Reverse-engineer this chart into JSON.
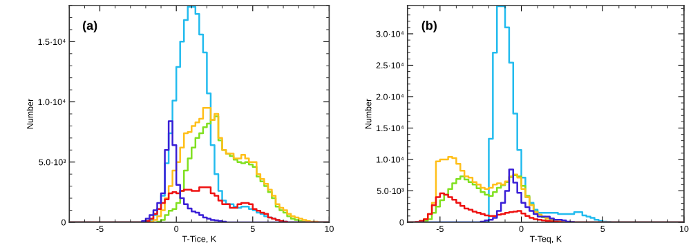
{
  "chart_data": [
    {
      "type": "histogram",
      "xlabel": "T-Tice, K",
      "ylabel": "Number",
      "annotations": [
        "(a)"
      ],
      "bins": [
        -7,
        -6.75,
        -6.5,
        -6.25,
        -6,
        -5.75,
        -5.5,
        -5.25,
        -5,
        -4.75,
        -4.5,
        -4.25,
        -4,
        -3.75,
        -3.5,
        -3.25,
        -3,
        -2.75,
        -2.5,
        -2.25,
        -2,
        -1.75,
        -1.5,
        -1.25,
        -1,
        -0.75,
        -0.5,
        -0.25,
        0,
        0.25,
        0.5,
        0.75,
        1,
        1.25,
        1.5,
        1.75,
        2,
        2.25,
        2.5,
        2.75,
        3,
        3.25,
        3.5,
        3.75,
        4,
        4.25,
        4.5,
        4.75,
        5,
        5.25,
        5.5,
        5.75,
        6,
        6.25,
        6.5,
        6.75,
        7,
        7.25,
        7.5,
        7.75,
        8,
        8.25,
        8.5,
        8.75,
        9,
        9.25,
        9.5,
        9.75,
        10
      ],
      "series": [
        {
          "color": "#22bbee",
          "values": [
            0,
            0,
            0,
            0,
            0,
            0,
            0,
            0,
            0,
            0,
            0,
            0,
            0,
            0,
            0,
            0,
            0,
            0,
            0,
            0,
            50,
            200,
            600,
            1100,
            2200,
            4900,
            7400,
            10100,
            12900,
            15000,
            16800,
            17900,
            17900,
            17300,
            15600,
            14100,
            10700,
            6400,
            4000,
            2600,
            1800,
            1500,
            1500,
            1300,
            1200,
            1300,
            1300,
            1100,
            1000,
            800,
            700,
            500,
            400,
            300,
            200,
            100,
            50,
            0,
            0,
            0,
            0,
            0,
            0,
            0,
            0,
            0,
            0,
            0
          ]
        },
        {
          "color": "#80e020",
          "values": [
            0,
            0,
            0,
            0,
            0,
            0,
            0,
            0,
            0,
            0,
            0,
            0,
            0,
            0,
            0,
            0,
            0,
            0,
            0,
            0,
            0,
            0,
            0,
            50,
            200,
            600,
            950,
            1100,
            1600,
            2600,
            4300,
            5300,
            6200,
            7000,
            7400,
            7900,
            8200,
            8500,
            8800,
            6800,
            6000,
            5700,
            5500,
            5200,
            5000,
            4900,
            5000,
            4800,
            4600,
            3800,
            3400,
            3000,
            2500,
            2000,
            1300,
            1000,
            800,
            500,
            300,
            200,
            100,
            50,
            0,
            0,
            0,
            0,
            0,
            0
          ]
        },
        {
          "color": "#ffbf1a",
          "values": [
            0,
            0,
            0,
            0,
            0,
            0,
            0,
            0,
            0,
            0,
            0,
            0,
            0,
            0,
            0,
            0,
            0,
            0,
            0,
            0,
            0,
            50,
            200,
            500,
            1000,
            2000,
            3000,
            4300,
            5000,
            6200,
            7400,
            7500,
            8000,
            8300,
            8600,
            9500,
            9500,
            8500,
            9000,
            7000,
            6000,
            5700,
            5700,
            5300,
            5300,
            5600,
            5300,
            5000,
            5000,
            4000,
            3600,
            3200,
            2700,
            2200,
            1500,
            1200,
            1000,
            700,
            500,
            400,
            300,
            200,
            100,
            50,
            50,
            0,
            0,
            0
          ]
        },
        {
          "color": "#ee1111",
          "values": [
            0,
            0,
            0,
            0,
            0,
            0,
            0,
            0,
            0,
            0,
            0,
            0,
            0,
            0,
            0,
            0,
            0,
            0,
            0,
            50,
            100,
            300,
            700,
            1100,
            1600,
            1900,
            2400,
            2500,
            2400,
            2600,
            2700,
            2700,
            2600,
            2600,
            2900,
            2900,
            2900,
            2400,
            2200,
            1800,
            1500,
            1500,
            1200,
            1200,
            1500,
            1600,
            1600,
            1500,
            1100,
            950,
            800,
            700,
            400,
            300,
            200,
            100,
            50,
            0,
            0,
            0,
            0,
            0,
            0,
            0,
            0,
            0,
            0,
            0
          ]
        },
        {
          "color": "#3a1fd6",
          "values": [
            0,
            0,
            0,
            0,
            0,
            0,
            0,
            0,
            0,
            0,
            0,
            0,
            0,
            0,
            0,
            0,
            0,
            0,
            0,
            100,
            300,
            600,
            1000,
            1600,
            2400,
            6000,
            8400,
            6400,
            3100,
            2000,
            1500,
            1150,
            900,
            800,
            600,
            400,
            300,
            200,
            150,
            100,
            50,
            0,
            0,
            0,
            0,
            0,
            0,
            0,
            0,
            0,
            0,
            0,
            0,
            0,
            0,
            0,
            0,
            0,
            0,
            0,
            0,
            0,
            0,
            0,
            0,
            0,
            0,
            0
          ]
        }
      ],
      "xlim": [
        -7,
        10
      ],
      "xticks": [
        -5,
        0,
        5,
        10
      ],
      "ylim": [
        0,
        18000
      ],
      "yticks": [
        0,
        {
          "value": 5000,
          "label": "5.0·10³"
        },
        {
          "value": 10000,
          "label": "1.0·10⁴"
        },
        {
          "value": 15000,
          "label": "1.5·10⁴"
        }
      ]
    },
    {
      "type": "histogram",
      "xlabel": "T-Teq, K",
      "ylabel": "Number",
      "annotations": [
        "(b)"
      ],
      "bins": [
        -7,
        -6.75,
        -6.5,
        -6.25,
        -6,
        -5.75,
        -5.5,
        -5.25,
        -5,
        -4.75,
        -4.5,
        -4.25,
        -4,
        -3.75,
        -3.5,
        -3.25,
        -3,
        -2.75,
        -2.5,
        -2.25,
        -2,
        -1.75,
        -1.5,
        -1.25,
        -1,
        -0.75,
        -0.5,
        -0.25,
        0,
        0.25,
        0.5,
        0.75,
        1,
        1.25,
        1.5,
        1.75,
        2,
        2.25,
        2.5,
        2.75,
        3,
        3.25,
        3.5,
        3.75,
        4,
        4.25,
        4.5,
        4.75,
        5,
        5.25,
        5.5,
        5.75,
        6,
        6.25,
        6.5,
        6.75,
        7,
        7.25,
        7.5,
        7.75,
        8,
        8.25,
        8.5,
        8.75,
        9,
        9.25,
        9.5,
        9.75,
        10
      ],
      "series": [
        {
          "color": "#22bbee",
          "values": [
            0,
            0,
            0,
            0,
            0,
            0,
            0,
            0,
            0,
            0,
            0,
            0,
            0,
            0,
            0,
            0,
            0,
            0,
            0,
            50,
            13300,
            27000,
            34400,
            34400,
            31000,
            25400,
            17300,
            11500,
            7100,
            4000,
            3100,
            2000,
            1500,
            1500,
            1500,
            1500,
            1500,
            1300,
            1300,
            1300,
            1300,
            1600,
            1600,
            1100,
            900,
            700,
            400,
            200,
            100,
            50,
            0,
            0,
            0,
            0,
            0,
            0,
            0,
            0,
            0,
            0,
            0,
            0,
            0,
            0,
            0,
            0,
            0,
            0
          ]
        },
        {
          "color": "#80e020",
          "values": [
            0,
            0,
            0,
            0,
            200,
            500,
            1500,
            2500,
            3500,
            4400,
            5300,
            6200,
            6900,
            7300,
            6800,
            6400,
            6000,
            5400,
            4800,
            4400,
            4200,
            4800,
            5500,
            5900,
            6400,
            7200,
            7500,
            7300,
            5800,
            4200,
            2800,
            1700,
            1200,
            800,
            600,
            400,
            300,
            200,
            100,
            50,
            0,
            0,
            0,
            0,
            0,
            0,
            0,
            0,
            0,
            0,
            0,
            0,
            0,
            0,
            0,
            0,
            0,
            0,
            0,
            0,
            0,
            0,
            0,
            0,
            0,
            0,
            0,
            0
          ]
        },
        {
          "color": "#ffbf1a",
          "values": [
            0,
            0,
            50,
            200,
            500,
            1300,
            3100,
            9700,
            10000,
            10000,
            10400,
            10200,
            9300,
            8200,
            7300,
            7100,
            6400,
            6000,
            5500,
            5300,
            5500,
            6000,
            6200,
            6000,
            6500,
            7300,
            7600,
            7100,
            5300,
            4000,
            2700,
            1600,
            1200,
            900,
            600,
            500,
            300,
            200,
            100,
            50,
            50,
            0,
            0,
            0,
            0,
            0,
            0,
            0,
            0,
            0,
            0,
            0,
            0,
            0,
            0,
            0,
            0,
            0,
            0,
            0,
            0,
            0,
            0,
            0,
            0,
            0,
            0,
            0
          ]
        },
        {
          "color": "#ee1111",
          "values": [
            0,
            0,
            50,
            200,
            500,
            1300,
            2700,
            4000,
            4600,
            4400,
            4000,
            3600,
            3100,
            2600,
            2200,
            2000,
            1700,
            1500,
            1300,
            1100,
            1000,
            1000,
            1200,
            1300,
            1500,
            1600,
            1700,
            1800,
            1400,
            1000,
            700,
            500,
            400,
            300,
            200,
            150,
            100,
            50,
            0,
            0,
            0,
            0,
            0,
            0,
            0,
            0,
            0,
            0,
            0,
            0,
            0,
            0,
            0,
            0,
            0,
            0,
            0,
            0,
            0,
            0,
            0,
            0,
            0,
            0,
            0,
            0,
            0,
            0
          ]
        },
        {
          "color": "#3a1fd6",
          "values": [
            0,
            0,
            0,
            0,
            0,
            0,
            0,
            0,
            0,
            0,
            0,
            0,
            0,
            0,
            0,
            0,
            0,
            0,
            100,
            300,
            400,
            700,
            1800,
            3100,
            5000,
            8400,
            6300,
            4700,
            3100,
            2400,
            1800,
            1300,
            900,
            900,
            900,
            600,
            400,
            400,
            300,
            100,
            50,
            0,
            0,
            0,
            0,
            0,
            0,
            0,
            0,
            0,
            0,
            0,
            0,
            0,
            0,
            0,
            0,
            0,
            0,
            0,
            0,
            0,
            0,
            0,
            0,
            0,
            0,
            0
          ]
        }
      ],
      "xlim": [
        -7,
        10
      ],
      "xticks": [
        -5,
        0,
        5,
        10
      ],
      "ylim": [
        0,
        34500
      ],
      "yticks": [
        0,
        {
          "value": 5000,
          "label": "5.0·10³"
        },
        {
          "value": 10000,
          "label": "1.0·10⁴"
        },
        {
          "value": 15000,
          "label": "1.5·10⁴"
        },
        {
          "value": 20000,
          "label": "2.0·10⁴"
        },
        {
          "value": 25000,
          "label": "2.5·10⁴"
        },
        {
          "value": 30000,
          "label": "3.0·10⁴"
        }
      ]
    }
  ]
}
